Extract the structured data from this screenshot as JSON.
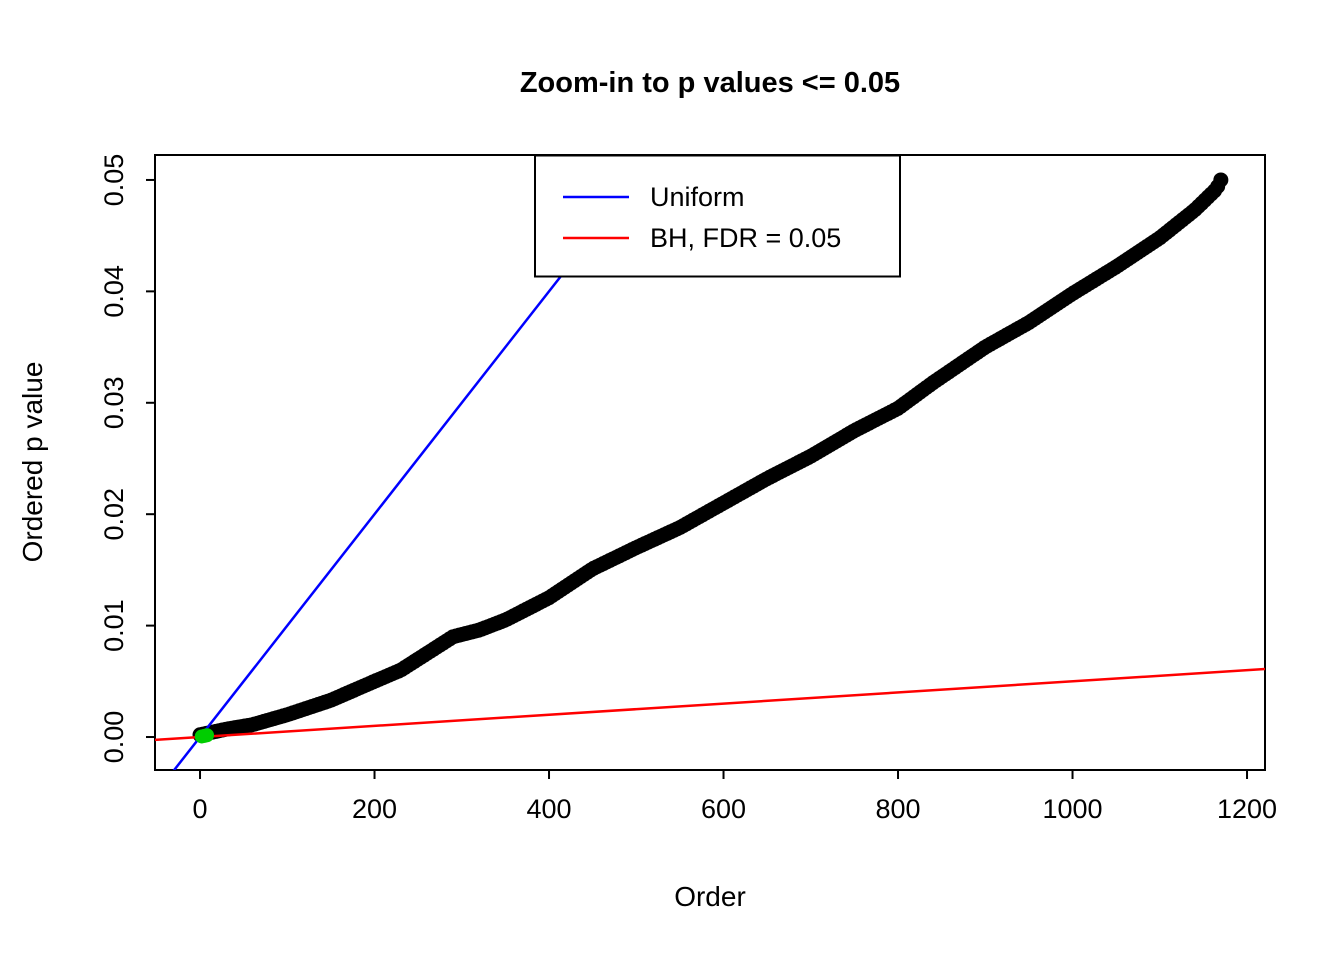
{
  "page": {
    "background": "#FFFFFF"
  },
  "chart_data": {
    "type": "scatter",
    "title": "Zoom-in to p values <= 0.05",
    "xlabel": "Order",
    "ylabel": "Ordered p value",
    "xlim": [
      -51.6,
      1220.6
    ],
    "ylim": [
      -0.00296,
      0.05224
    ],
    "x_ticks": [
      0,
      200,
      400,
      600,
      800,
      1000,
      1200
    ],
    "y_ticks": [
      0,
      0.01,
      0.02,
      0.03,
      0.04,
      0.05
    ],
    "grid": false,
    "box": true,
    "series": [
      {
        "name": "ordered-p-values",
        "type": "scatter",
        "color": "#000000",
        "marker_radius": 7.5,
        "render_samples": 320,
        "points_spline": [
          [
            0,
            0.0002
          ],
          [
            30,
            0.0007
          ],
          [
            60,
            0.0011
          ],
          [
            100,
            0.002
          ],
          [
            150,
            0.0033
          ],
          [
            200,
            0.005
          ],
          [
            230,
            0.006
          ],
          [
            260,
            0.0075
          ],
          [
            290,
            0.009
          ],
          [
            320,
            0.0096
          ],
          [
            350,
            0.0105
          ],
          [
            400,
            0.0125
          ],
          [
            450,
            0.0151
          ],
          [
            500,
            0.017
          ],
          [
            550,
            0.0188
          ],
          [
            600,
            0.021
          ],
          [
            650,
            0.0232
          ],
          [
            700,
            0.0252
          ],
          [
            750,
            0.0275
          ],
          [
            800,
            0.0295
          ],
          [
            840,
            0.0318
          ],
          [
            900,
            0.035
          ],
          [
            950,
            0.0372
          ],
          [
            1000,
            0.0398
          ],
          [
            1050,
            0.0422
          ],
          [
            1100,
            0.0448
          ],
          [
            1140,
            0.0473
          ],
          [
            1165,
            0.0492
          ],
          [
            1170,
            0.05
          ]
        ]
      },
      {
        "name": "uniform-line",
        "type": "line",
        "color": "#0000FF",
        "slope": 0.0001,
        "intercept": 0
      },
      {
        "name": "bh-fdr-line",
        "type": "line",
        "color": "#FF0000",
        "slope": 5e-06,
        "intercept": 0
      },
      {
        "name": "significant-points",
        "type": "scatter",
        "color": "#00CD00",
        "marker_radius": 7,
        "points": [
          [
            2,
            5e-05
          ],
          [
            5,
            0.0001
          ],
          [
            8,
            0.00016
          ]
        ]
      }
    ],
    "legend": {
      "position": "top-center",
      "entries": [
        {
          "label": "Uniform",
          "color": "#0000FF"
        },
        {
          "label": "BH, FDR = 0.05",
          "color": "#FF0000"
        }
      ]
    }
  }
}
